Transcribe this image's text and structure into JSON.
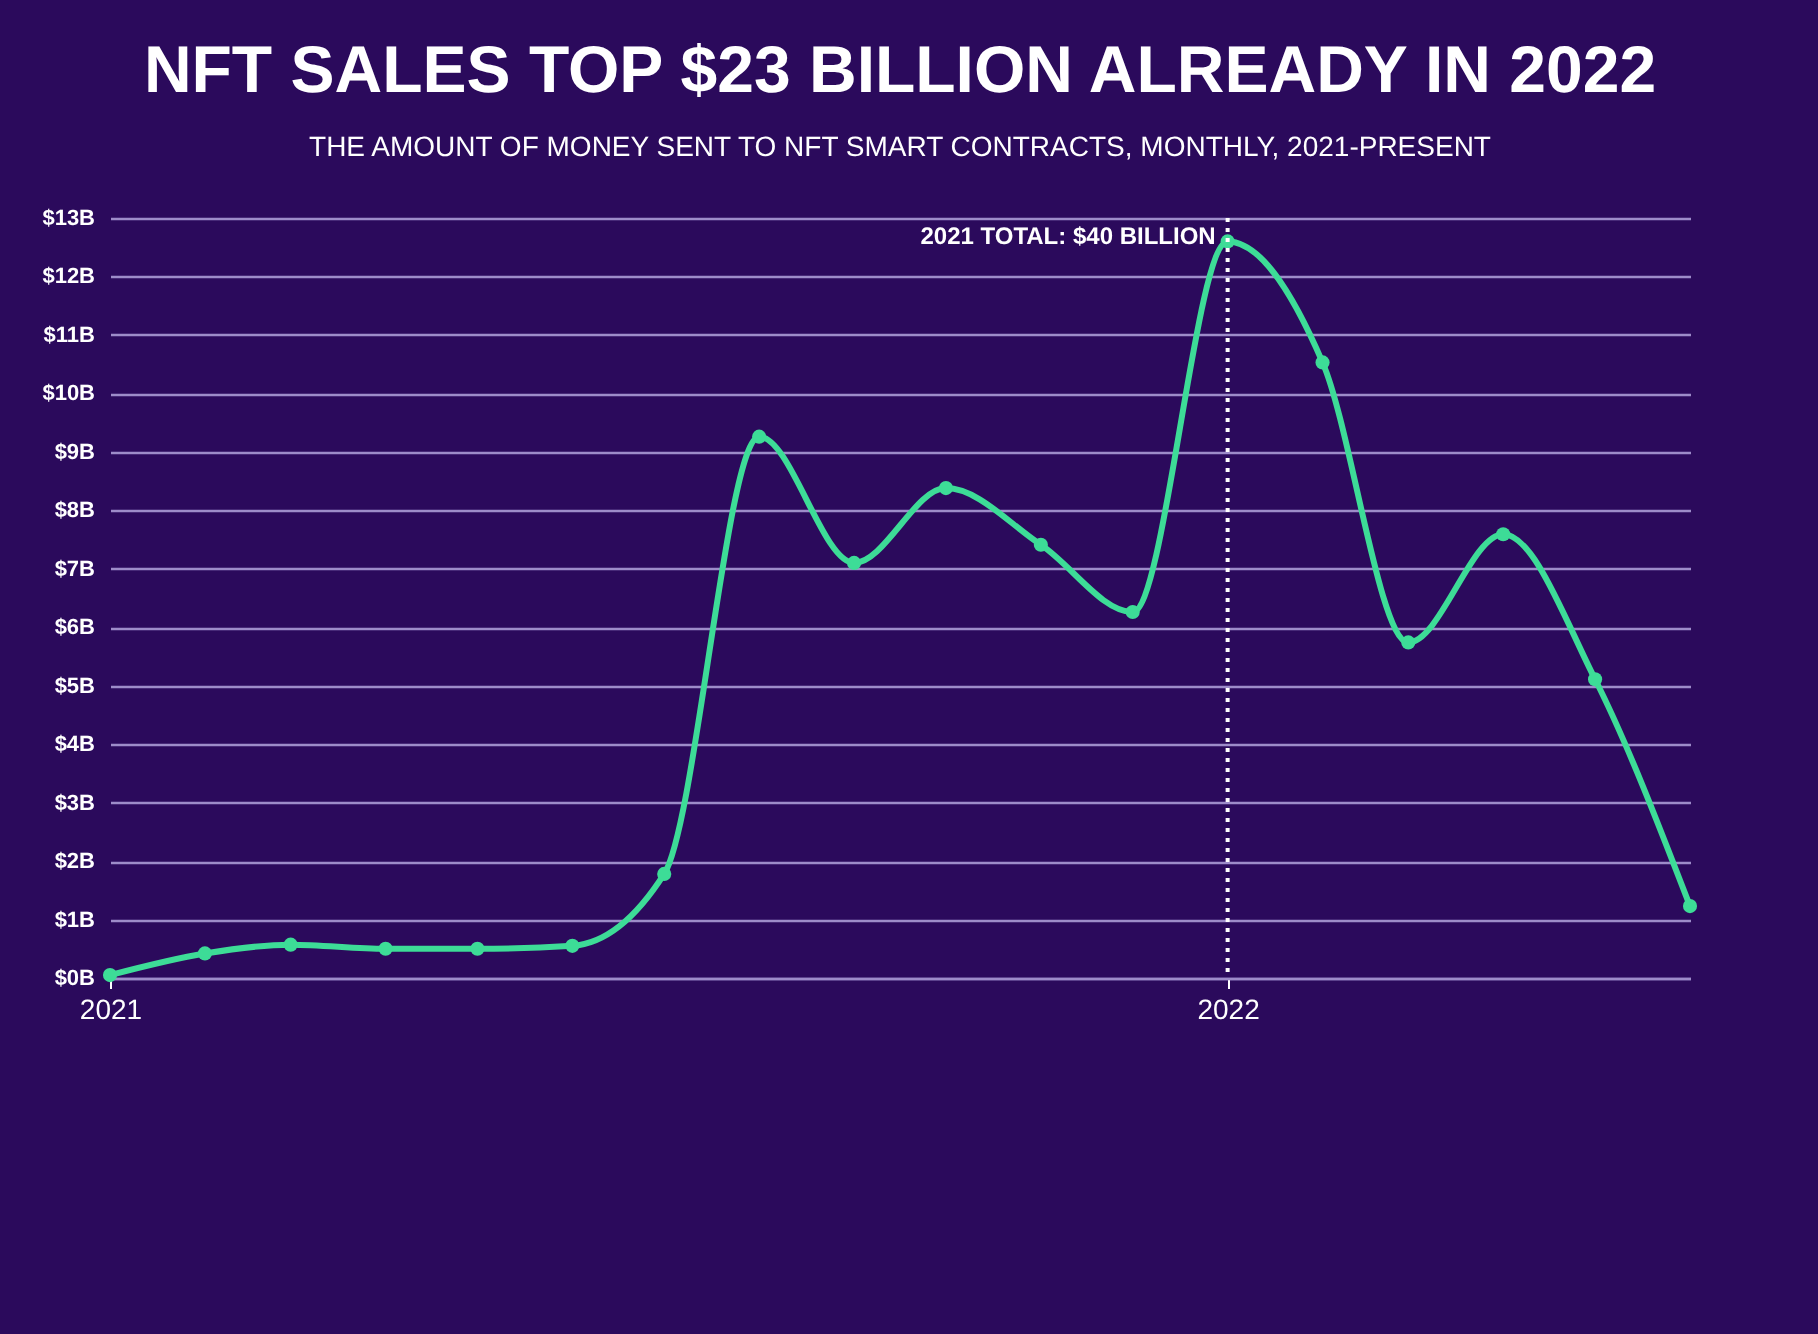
{
  "chart_data": {
    "type": "line",
    "title": "NFT SALES TOP $23 BILLION ALREADY IN 2022",
    "subtitle": "THE AMOUNT OF MONEY SENT TO NFT SMART CONTRACTS, MONTHLY, 2021-PRESENT",
    "x": [
      "2021-01",
      "2021-02",
      "2021-03",
      "2021-04",
      "2021-05",
      "2021-06",
      "2021-07",
      "2021-08",
      "2021-09",
      "2021-10",
      "2021-11",
      "2021-12",
      "2022-01",
      "2022-02",
      "2022-03",
      "2022-04",
      "2022-05",
      "2022-06"
    ],
    "series": [
      {
        "color": "#3ddc97",
        "values": [
          0.05,
          0.42,
          0.57,
          0.5,
          0.5,
          0.55,
          1.78,
          9.26,
          7.1,
          8.38,
          7.41,
          6.26,
          12.6,
          10.53,
          5.74,
          7.59,
          5.11,
          1.23
        ]
      }
    ],
    "xlim": [
      "2021-01",
      "2022-06"
    ],
    "xticks": [
      "2021",
      "2022"
    ],
    "ylim": [
      0,
      13
    ],
    "yticks": [
      {
        "value": 0,
        "label": "$0B"
      },
      {
        "value": 1,
        "label": "$1B"
      },
      {
        "value": 2,
        "label": "$2B"
      },
      {
        "value": 3,
        "label": "$3B"
      },
      {
        "value": 4,
        "label": "$4B"
      },
      {
        "value": 5,
        "label": "$5B"
      },
      {
        "value": 6,
        "label": "$6B"
      },
      {
        "value": 7,
        "label": "$7B"
      },
      {
        "value": 8,
        "label": "$8B"
      },
      {
        "value": 9,
        "label": "$9B"
      },
      {
        "value": 10,
        "label": "$10B"
      },
      {
        "value": 11,
        "label": "$11B"
      },
      {
        "value": 12,
        "label": "$12B"
      },
      {
        "value": 13,
        "label": "$13B"
      }
    ],
    "ref_lines": [
      {
        "axis": "x",
        "value": "2022-01",
        "label": "2021 TOTAL: $40 BILLION",
        "color": "#ffffff",
        "line_style": "dotted"
      }
    ],
    "grid": "y",
    "marker": "circle",
    "line_style": "solid"
  }
}
